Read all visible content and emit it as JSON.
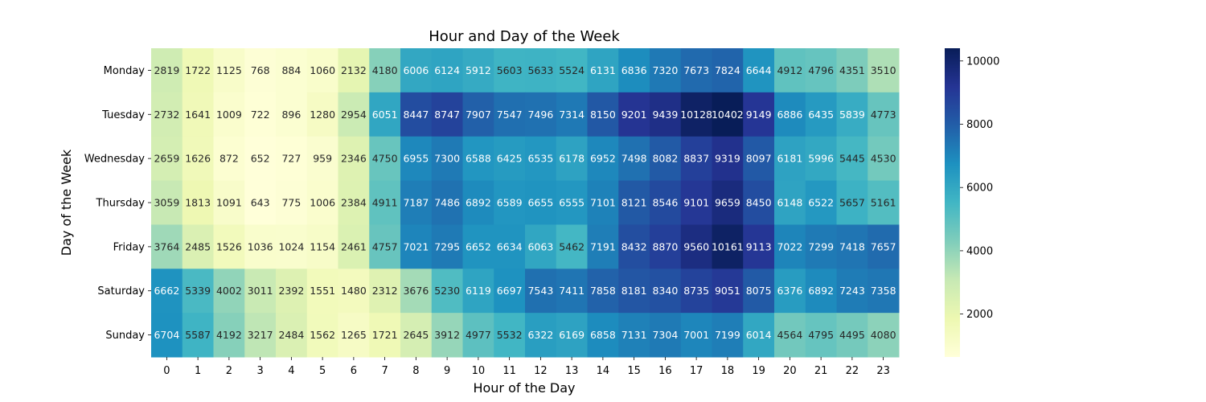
{
  "chart_data": {
    "type": "heatmap",
    "title": "Hour and Day of the Week",
    "xlabel": "Hour of the Day",
    "ylabel": "Day of the Week",
    "x": [
      "0",
      "1",
      "2",
      "3",
      "4",
      "5",
      "6",
      "7",
      "8",
      "9",
      "10",
      "11",
      "12",
      "13",
      "14",
      "15",
      "16",
      "17",
      "18",
      "19",
      "20",
      "21",
      "22",
      "23"
    ],
    "y": [
      "Monday",
      "Tuesday",
      "Wednesday",
      "Thursday",
      "Friday",
      "Saturday",
      "Sunday"
    ],
    "values": [
      [
        2819,
        1722,
        1125,
        768,
        884,
        1060,
        2132,
        4180,
        6006,
        6124,
        5912,
        5603,
        5633,
        5524,
        6131,
        6836,
        7320,
        7673,
        7824,
        6644,
        4912,
        4796,
        4351,
        3510
      ],
      [
        2732,
        1641,
        1009,
        722,
        896,
        1280,
        2954,
        6051,
        8447,
        8747,
        7907,
        7547,
        7496,
        7314,
        8150,
        9201,
        9439,
        10128,
        10402,
        9149,
        6886,
        6435,
        5839,
        4773
      ],
      [
        2659,
        1626,
        872,
        652,
        727,
        959,
        2346,
        4750,
        6955,
        7300,
        6588,
        6425,
        6535,
        6178,
        6952,
        7498,
        8082,
        8837,
        9319,
        8097,
        6181,
        5996,
        5445,
        4530
      ],
      [
        3059,
        1813,
        1091,
        643,
        775,
        1006,
        2384,
        4911,
        7187,
        7486,
        6892,
        6589,
        6655,
        6555,
        7101,
        8121,
        8546,
        9101,
        9659,
        8450,
        6148,
        6522,
        5657,
        5161
      ],
      [
        3764,
        2485,
        1526,
        1036,
        1024,
        1154,
        2461,
        4757,
        7021,
        7295,
        6652,
        6634,
        6063,
        5462,
        7191,
        8432,
        8870,
        9560,
        10161,
        9113,
        7022,
        7299,
        7418,
        7657
      ],
      [
        6662,
        5339,
        4002,
        3011,
        2392,
        1551,
        1480,
        2312,
        3676,
        5230,
        6119,
        6697,
        7543,
        7411,
        7858,
        8181,
        8340,
        8735,
        9051,
        8075,
        6376,
        6892,
        7243,
        7358
      ],
      [
        6704,
        5587,
        4192,
        3217,
        2484,
        1562,
        1265,
        1721,
        2645,
        3912,
        4977,
        5532,
        6322,
        6169,
        6858,
        7131,
        7304,
        7001,
        7199,
        6014,
        4564,
        4795,
        4495,
        4080
      ]
    ],
    "colormap": "YlGnBu",
    "vmin": 643,
    "vmax": 10402,
    "colorbar_ticks": [
      "2000",
      "4000",
      "6000",
      "8000",
      "10000"
    ],
    "annotations": "cell values shown in each cell",
    "grid": false
  }
}
